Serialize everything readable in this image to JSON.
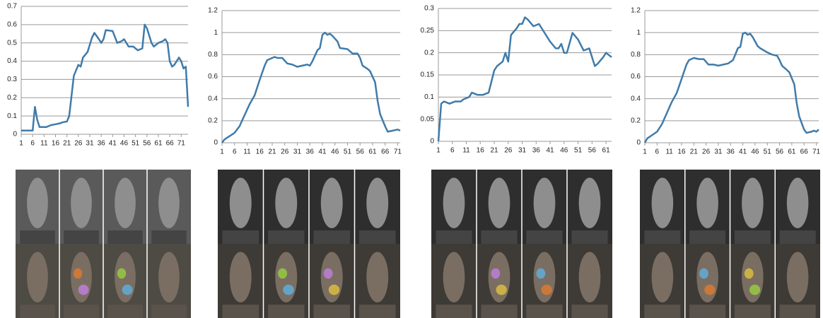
{
  "chart_data": [
    {
      "type": "line",
      "color": "#3f7bab",
      "grid": true,
      "x": [
        1,
        5,
        6,
        7,
        8,
        9,
        12,
        14,
        16,
        18,
        19,
        21,
        22,
        24,
        26,
        27,
        28,
        30,
        32,
        33,
        35,
        36,
        37,
        38,
        41,
        43,
        45,
        46,
        48,
        50,
        52,
        54,
        55,
        56,
        58,
        59,
        61,
        63,
        64,
        65,
        66,
        67,
        68,
        70,
        71,
        72,
        73,
        74
      ],
      "values": [
        0.02,
        0.02,
        0.02,
        0.15,
        0.08,
        0.04,
        0.04,
        0.05,
        0.055,
        0.06,
        0.065,
        0.07,
        0.1,
        0.32,
        0.38,
        0.37,
        0.42,
        0.45,
        0.53,
        0.555,
        0.52,
        0.5,
        0.52,
        0.57,
        0.565,
        0.5,
        0.51,
        0.52,
        0.48,
        0.48,
        0.46,
        0.47,
        0.6,
        0.58,
        0.5,
        0.48,
        0.5,
        0.51,
        0.52,
        0.5,
        0.4,
        0.37,
        0.38,
        0.42,
        0.4,
        0.36,
        0.37,
        0.15
      ],
      "xlim": [
        1,
        74
      ],
      "xticks": [
        1,
        6,
        11,
        16,
        21,
        26,
        31,
        36,
        41,
        46,
        51,
        56,
        61,
        66,
        71
      ],
      "ylim": [
        0,
        0.7
      ],
      "yticks": [
        0,
        0.1,
        0.2,
        0.3,
        0.4,
        0.5,
        0.6,
        0.7
      ]
    },
    {
      "type": "line",
      "color": "#3f7bab",
      "grid": true,
      "x": [
        1,
        2,
        4,
        6,
        8,
        10,
        12,
        14,
        16,
        18,
        19,
        21,
        22,
        23,
        25,
        27,
        29,
        31,
        33,
        35,
        36,
        37,
        39,
        40,
        41,
        42,
        43,
        44,
        45,
        47,
        48,
        51,
        53,
        55,
        56,
        57,
        59,
        60,
        62,
        63,
        64,
        66,
        67,
        69,
        71,
        72
      ],
      "values": [
        0,
        0.03,
        0.06,
        0.09,
        0.15,
        0.25,
        0.35,
        0.43,
        0.57,
        0.7,
        0.75,
        0.77,
        0.78,
        0.77,
        0.77,
        0.72,
        0.71,
        0.69,
        0.7,
        0.71,
        0.7,
        0.74,
        0.84,
        0.86,
        0.98,
        1.0,
        0.98,
        0.99,
        0.97,
        0.92,
        0.86,
        0.85,
        0.81,
        0.81,
        0.77,
        0.7,
        0.67,
        0.65,
        0.55,
        0.38,
        0.26,
        0.15,
        0.1,
        0.11,
        0.12,
        0.11
      ],
      "xlim": [
        1,
        72
      ],
      "xticks": [
        1,
        6,
        11,
        16,
        21,
        26,
        31,
        36,
        41,
        46,
        51,
        56,
        61,
        66,
        71
      ],
      "ylim": [
        0,
        1.2
      ],
      "yticks": [
        0,
        0.2,
        0.4,
        0.6,
        0.8,
        1,
        1.2
      ]
    },
    {
      "type": "line",
      "color": "#3f7bab",
      "grid": true,
      "x": [
        1,
        2,
        3,
        5,
        7,
        9,
        10,
        12,
        13,
        15,
        17,
        19,
        21,
        22,
        24,
        25,
        26,
        27,
        29,
        30,
        31,
        32,
        33,
        35,
        37,
        39,
        41,
        43,
        44,
        45,
        46,
        47,
        49,
        51,
        53,
        55,
        56,
        57,
        58,
        60,
        61,
        62,
        63
      ],
      "values": [
        0,
        0.085,
        0.09,
        0.085,
        0.09,
        0.09,
        0.095,
        0.1,
        0.11,
        0.105,
        0.105,
        0.11,
        0.16,
        0.17,
        0.18,
        0.2,
        0.18,
        0.24,
        0.255,
        0.265,
        0.265,
        0.28,
        0.275,
        0.26,
        0.265,
        0.245,
        0.225,
        0.21,
        0.21,
        0.22,
        0.2,
        0.2,
        0.245,
        0.23,
        0.205,
        0.21,
        0.19,
        0.17,
        0.175,
        0.19,
        0.2,
        0.195,
        0.19
      ],
      "xlim": [
        1,
        63
      ],
      "xticks": [
        1,
        6,
        11,
        16,
        21,
        26,
        31,
        36,
        41,
        46,
        51,
        56,
        61
      ],
      "ylim": [
        0,
        0.3
      ],
      "yticks": [
        0,
        0.05,
        0.1,
        0.15,
        0.2,
        0.25,
        0.3
      ]
    },
    {
      "type": "line",
      "color": "#3f7bab",
      "grid": true,
      "x": [
        1,
        2,
        4,
        6,
        8,
        10,
        12,
        14,
        16,
        18,
        19,
        21,
        23,
        25,
        27,
        29,
        31,
        33,
        35,
        37,
        39,
        40,
        41,
        42,
        43,
        44,
        45,
        47,
        48,
        51,
        53,
        55,
        56,
        57,
        59,
        60,
        62,
        63,
        64,
        66,
        67,
        69,
        70,
        71,
        72
      ],
      "values": [
        0,
        0.04,
        0.07,
        0.1,
        0.17,
        0.27,
        0.37,
        0.45,
        0.58,
        0.71,
        0.75,
        0.77,
        0.76,
        0.76,
        0.71,
        0.71,
        0.7,
        0.71,
        0.72,
        0.75,
        0.86,
        0.87,
        0.99,
        1.0,
        0.98,
        0.99,
        0.96,
        0.88,
        0.86,
        0.82,
        0.8,
        0.79,
        0.75,
        0.7,
        0.66,
        0.64,
        0.53,
        0.36,
        0.24,
        0.12,
        0.09,
        0.1,
        0.11,
        0.1,
        0.12
      ],
      "xlim": [
        1,
        72
      ],
      "xticks": [
        1,
        6,
        11,
        16,
        21,
        26,
        31,
        36,
        41,
        46,
        51,
        56,
        61,
        66,
        71
      ],
      "ylim": [
        0,
        1.2
      ],
      "yticks": [
        0,
        0.2,
        0.4,
        0.6,
        0.8,
        1,
        1.2
      ]
    }
  ]
}
